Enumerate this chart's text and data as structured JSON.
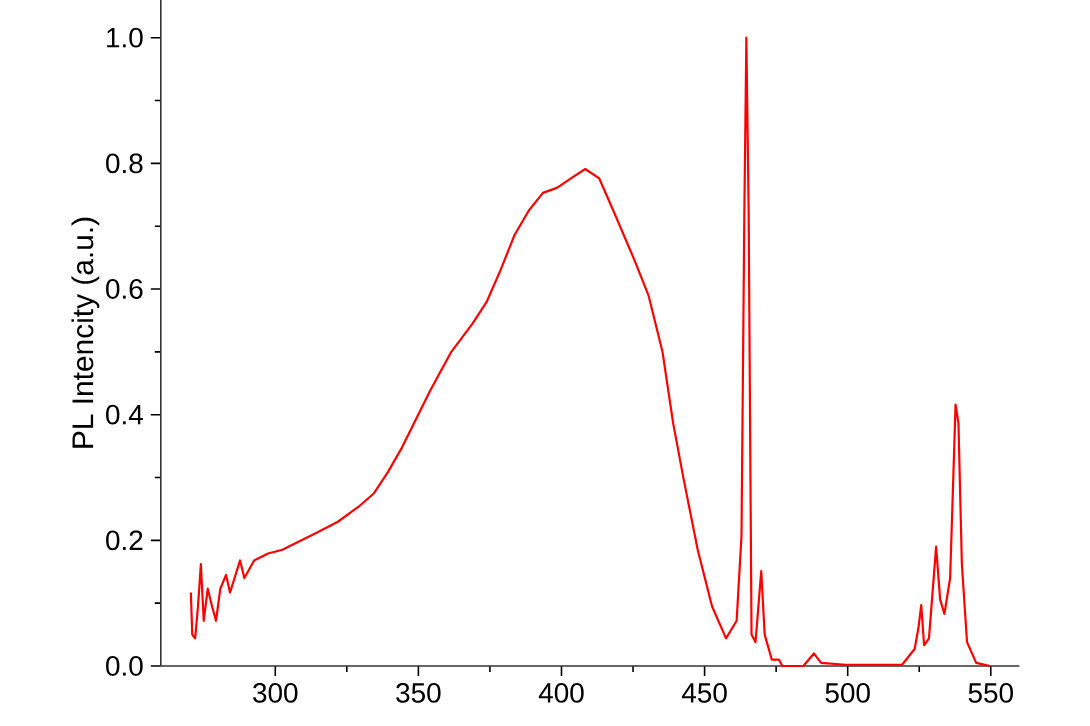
{
  "chart_data": {
    "type": "line",
    "ylabel": "PL Intencity (a.u.)",
    "xlim": [
      260,
      560
    ],
    "ylim": [
      0,
      1.06
    ],
    "xticks": [
      300,
      350,
      400,
      450,
      500,
      550
    ],
    "yticks": [
      {
        "value": 0,
        "label": "0.0"
      },
      0.2,
      0.4,
      0.6,
      0.8,
      {
        "value": 1,
        "label": "1.0"
      }
    ],
    "grid": false,
    "marker": "none",
    "line_style": "solid",
    "series": [
      {
        "color": "#ff0000",
        "x": [
          270.5,
          271,
          272,
          273,
          274,
          275,
          276.4,
          277.9,
          279.3,
          280.8,
          282.8,
          284.2,
          287.7,
          289.2,
          292.6,
          297.5,
          302.5,
          307.4,
          314.8,
          322,
          329.5,
          334.5,
          339.4,
          344.3,
          349.2,
          354.1,
          361.5,
          368.9,
          373.8,
          378.7,
          383.6,
          388.6,
          393.5,
          398.4,
          403.3,
          408.3,
          413.2,
          418.1,
          425.5,
          430.4,
          435.3,
          439,
          442.7,
          447.6,
          452.6,
          457.5,
          461.2,
          462.9,
          463.9,
          464.6,
          465.4,
          466.4,
          467.8,
          469.8,
          471,
          473.5,
          476,
          477.2,
          484.5,
          488.2,
          490.7,
          499.3,
          519,
          523.4,
          524.7,
          525.7,
          526.7,
          528.4,
          530.9,
          532.3,
          533.8,
          535.8,
          537.7,
          538.7,
          539.9,
          541.7,
          544.9,
          549.8
        ],
        "values": [
          0.117,
          0.05,
          0.044,
          0.095,
          0.162,
          0.072,
          0.123,
          0.095,
          0.072,
          0.123,
          0.145,
          0.117,
          0.168,
          0.14,
          0.168,
          0.179,
          0.185,
          0.196,
          0.213,
          0.23,
          0.255,
          0.275,
          0.309,
          0.348,
          0.393,
          0.438,
          0.5,
          0.545,
          0.579,
          0.63,
          0.686,
          0.725,
          0.753,
          0.761,
          0.776,
          0.791,
          0.776,
          0.725,
          0.646,
          0.59,
          0.5,
          0.387,
          0.297,
          0.185,
          0.095,
          0.044,
          0.072,
          0.207,
          0.725,
          1.0,
          0.725,
          0.05,
          0.038,
          0.151,
          0.05,
          0.01,
          0.01,
          0,
          0,
          0.02,
          0.005,
          0.002,
          0.002,
          0.027,
          0.06,
          0.097,
          0.033,
          0.044,
          0.19,
          0.106,
          0.083,
          0.14,
          0.416,
          0.387,
          0.162,
          0.038,
          0.005,
          0
        ]
      }
    ]
  }
}
